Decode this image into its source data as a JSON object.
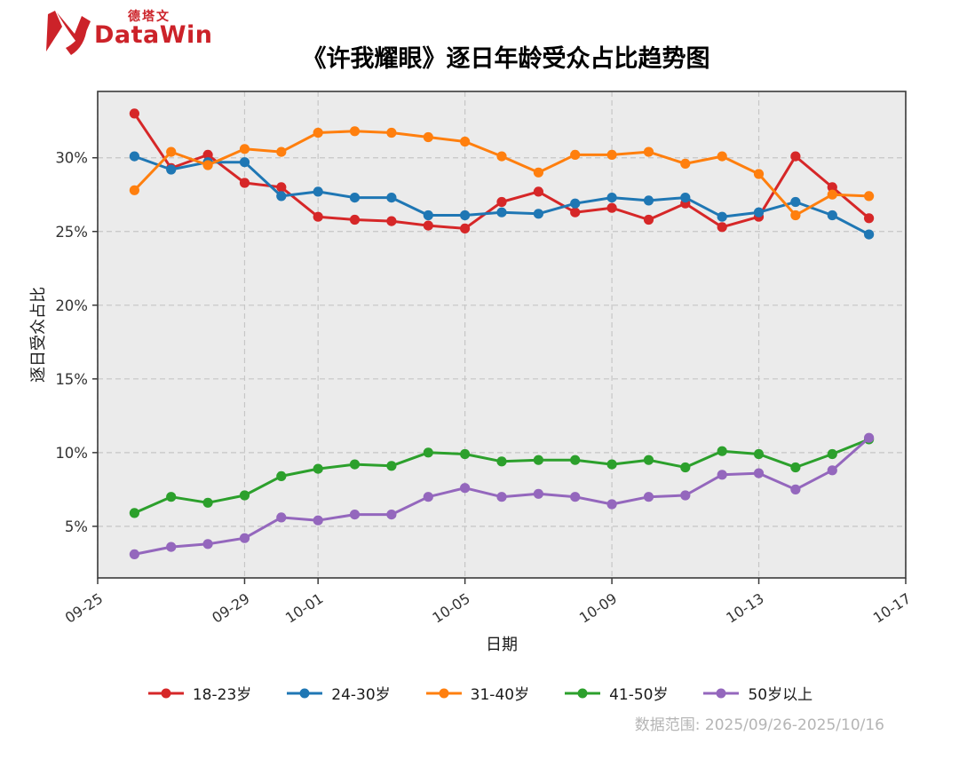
{
  "logo": {
    "brand": "DataWin",
    "brand_cn": "德塔文",
    "color": "#cc2229"
  },
  "footnote": {
    "text": "数据范围: 2025/09/26-2025/10/16"
  },
  "chart_data": {
    "type": "line",
    "title": "《许我耀眼》逐日年龄受众占比趋势图",
    "xlabel": "日期",
    "ylabel": "逐日受众占比",
    "legend_position": "bottom",
    "grid": true,
    "ylim": [
      1.5,
      34.5
    ],
    "y_ticks": [
      5,
      10,
      15,
      20,
      25,
      30
    ],
    "y_tick_suffix": "%",
    "x_tick_labels": [
      "09-25",
      "09-29",
      "10-01",
      "10-05",
      "10-09",
      "10-13",
      "10-17"
    ],
    "x_tick_day_offsets": [
      0,
      4,
      6,
      10,
      14,
      18,
      22
    ],
    "x_axis_span_days": 22,
    "start_day_offset": 1,
    "dates": [
      "09-26",
      "09-27",
      "09-28",
      "09-29",
      "09-30",
      "10-01",
      "10-02",
      "10-03",
      "10-04",
      "10-05",
      "10-06",
      "10-07",
      "10-08",
      "10-09",
      "10-10",
      "10-11",
      "10-12",
      "10-13",
      "10-14",
      "10-15",
      "10-16"
    ],
    "series": [
      {
        "id": "age-18-23",
        "name": "18-23岁",
        "color": "#d62728",
        "values": [
          33.0,
          29.3,
          30.2,
          28.3,
          28.0,
          26.0,
          25.8,
          25.7,
          25.4,
          25.2,
          27.0,
          27.7,
          26.3,
          26.6,
          25.8,
          26.9,
          25.3,
          26.0,
          30.1,
          28.0,
          25.9
        ]
      },
      {
        "id": "age-24-30",
        "name": "24-30岁",
        "color": "#1f77b4",
        "values": [
          30.1,
          29.2,
          29.7,
          29.7,
          27.4,
          27.7,
          27.3,
          27.3,
          26.1,
          26.1,
          26.3,
          26.2,
          26.9,
          27.3,
          27.1,
          27.3,
          26.0,
          26.3,
          27.0,
          26.1,
          24.8
        ]
      },
      {
        "id": "age-31-40",
        "name": "31-40岁",
        "color": "#ff7f0e",
        "values": [
          27.8,
          30.4,
          29.5,
          30.6,
          30.4,
          31.7,
          31.8,
          31.7,
          31.4,
          31.1,
          30.1,
          29.0,
          30.2,
          30.2,
          30.4,
          29.6,
          30.1,
          28.9,
          26.1,
          27.5,
          27.4
        ]
      },
      {
        "id": "age-41-50",
        "name": "41-50岁",
        "color": "#2ca02c",
        "values": [
          5.9,
          7.0,
          6.6,
          7.1,
          8.4,
          8.9,
          9.2,
          9.1,
          10.0,
          9.9,
          9.4,
          9.5,
          9.5,
          9.2,
          9.5,
          9.0,
          10.1,
          9.9,
          9.0,
          9.9,
          10.9
        ]
      },
      {
        "id": "age-50-plus",
        "name": "50岁以上",
        "color": "#9467bd",
        "values": [
          3.1,
          3.6,
          3.8,
          4.2,
          5.6,
          5.4,
          5.8,
          5.8,
          7.0,
          7.6,
          7.0,
          7.2,
          7.0,
          6.5,
          7.0,
          7.1,
          8.5,
          8.6,
          7.5,
          8.8,
          11.0
        ]
      }
    ],
    "style": {
      "plot_bg": "#ebebeb",
      "grid_color": "#c6c6c6",
      "spine_color": "#3a3a3a",
      "tick_label_color": "#333333"
    }
  }
}
